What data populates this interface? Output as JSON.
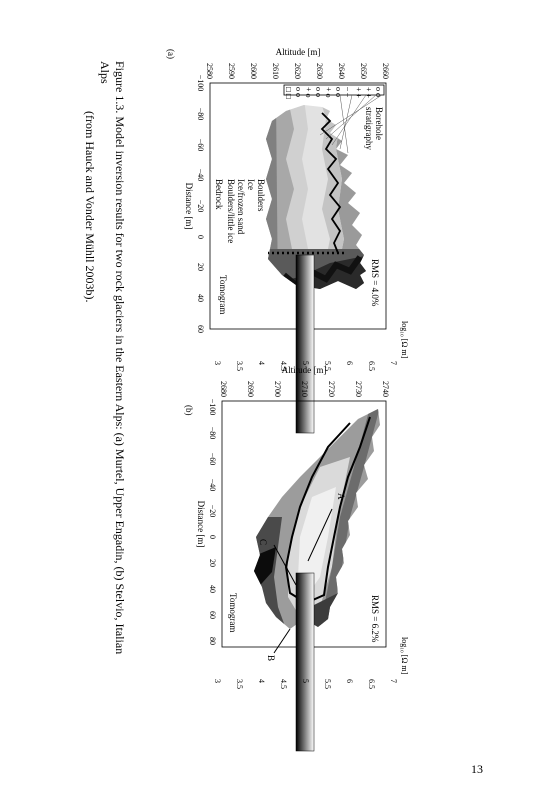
{
  "panel_a": {
    "label": "(a)",
    "ylabel": "Altitude [m]",
    "xlabel": "Distance [m]",
    "yticks": [
      "2660",
      "2650",
      "2640",
      "2630",
      "2620",
      "2610",
      "2600",
      "2590",
      "2580"
    ],
    "xticks": [
      "−100",
      "−80",
      "−60",
      "−40",
      "−20",
      "0",
      "20",
      "40",
      "60"
    ],
    "rms": "RMS = 4.0%",
    "tomogram": "Tomogram",
    "borehole_title": "Borehole",
    "borehole_title2": "stratigraphy",
    "legend": [
      "Boulders",
      "Ice",
      "Ice/frozen sand",
      "Boulders/little ice",
      "Bedrock"
    ],
    "cbar_label": "log₁₀ [Ω m]",
    "cbar_ticks": [
      "7",
      "6.5",
      "6",
      "5.5",
      "5",
      "4.5",
      "4",
      "3.5",
      "3"
    ]
  },
  "panel_b": {
    "label": "(b)",
    "ylabel": "Altitude [m]",
    "xlabel": "Distance [m]",
    "yticks": [
      "2740",
      "2730",
      "2720",
      "2710",
      "2700",
      "2690",
      "2680"
    ],
    "xticks": [
      "−100",
      "−80",
      "−60",
      "−40",
      "−20",
      "0",
      "20",
      "40",
      "60",
      "80"
    ],
    "rms": "RMS = 6.2%",
    "tomogram": "Tomogram",
    "markers": [
      "A",
      "B",
      "C"
    ],
    "cbar_label": "log₁₀ [Ω m]",
    "cbar_ticks": [
      "7",
      "6.5",
      "6",
      "5.5",
      "5",
      "4.5",
      "4",
      "3.5",
      "3"
    ]
  },
  "caption": {
    "line1": "Figure 1.3.     Model inversion results for two rock glaciers in the Eastern Alps: (a) Murtel, Upper Engadin, (b) Stelvio, Italian Alps",
    "line2": "(from Hauck and Vonder Mühll 2003b)."
  },
  "page_number": "13"
}
